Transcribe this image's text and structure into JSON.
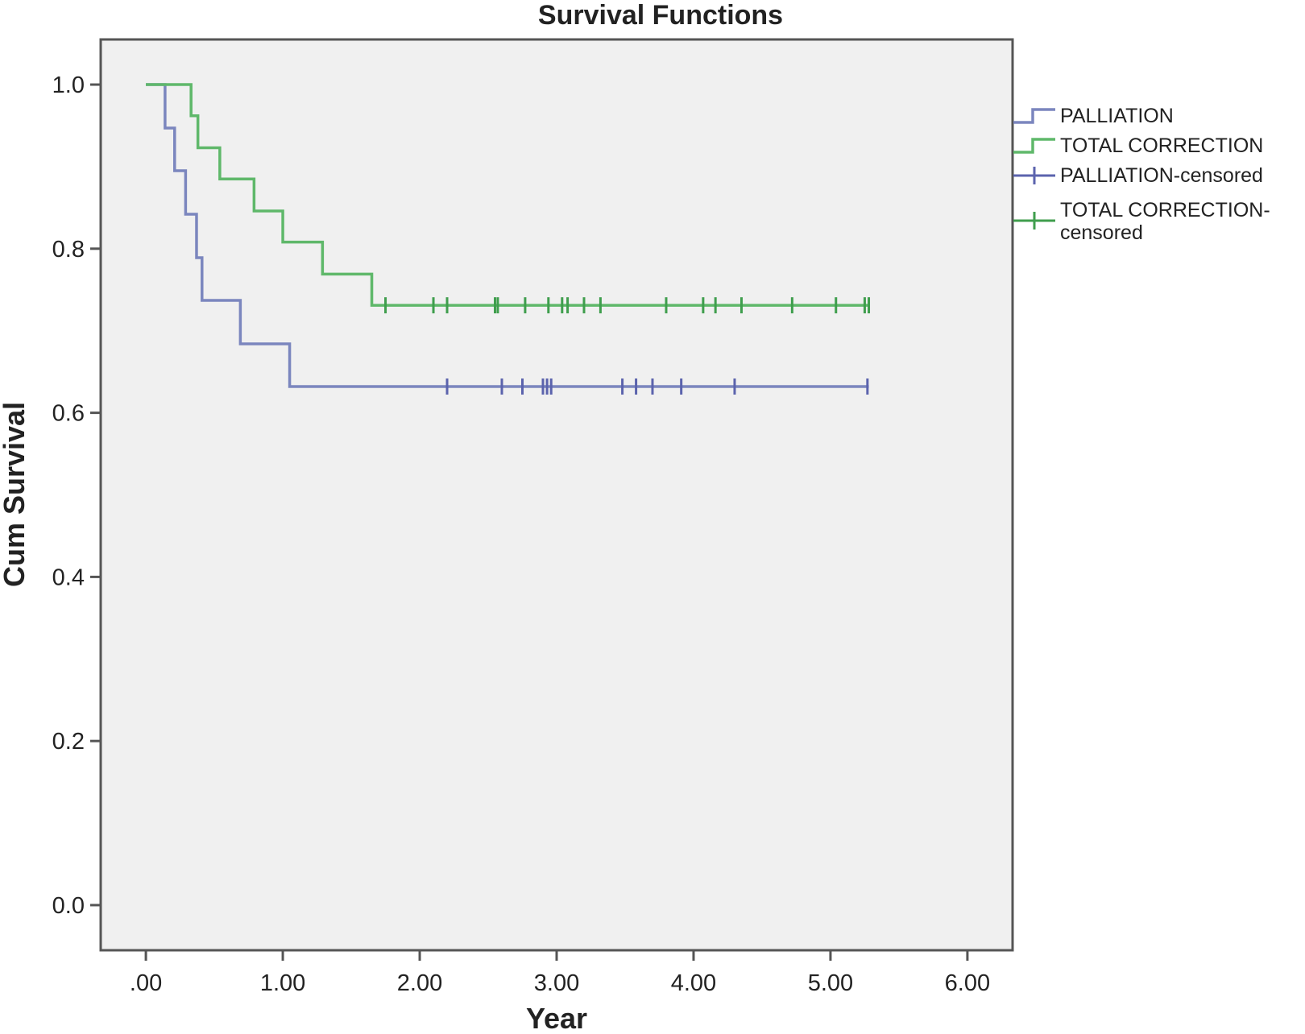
{
  "chart_data": {
    "type": "line",
    "subtype": "kaplan-meier-step",
    "title": "Survival Functions",
    "xlabel": "Year",
    "ylabel": "Cum Survival",
    "xlim": [
      -0.33,
      6.33
    ],
    "ylim": [
      -0.055,
      1.055
    ],
    "x_ticks": [
      0,
      1,
      2,
      3,
      4,
      5,
      6
    ],
    "x_tick_labels": [
      ".00",
      "1.00",
      "2.00",
      "3.00",
      "4.00",
      "5.00",
      "6.00"
    ],
    "y_ticks": [
      0,
      0.2,
      0.4,
      0.6,
      0.8,
      1.0
    ],
    "y_tick_labels": [
      "0.0",
      "0.2",
      "0.4",
      "0.6",
      "0.8",
      "1.0"
    ],
    "grid": false,
    "legend_position": "right",
    "plot_background": "#f0f0f0",
    "series": [
      {
        "name": "PALLIATION",
        "color": "#7b86be",
        "steps": [
          [
            0,
            1.0
          ],
          [
            0.14,
            0.947
          ],
          [
            0.21,
            0.895
          ],
          [
            0.29,
            0.842
          ],
          [
            0.37,
            0.789
          ],
          [
            0.41,
            0.737
          ],
          [
            0.69,
            0.684
          ],
          [
            1.05,
            0.632
          ]
        ],
        "end_x": 5.28,
        "censored_label": "PALLIATION-censored",
        "censored_color": "#5b63ad",
        "censored_x": [
          2.2,
          2.6,
          2.75,
          2.9,
          2.93,
          2.96,
          3.48,
          3.58,
          3.7,
          3.91,
          4.3,
          5.27
        ]
      },
      {
        "name": "TOTAL CORRECTION",
        "color": "#5fb86a",
        "steps": [
          [
            0,
            1.0
          ],
          [
            0.33,
            0.962
          ],
          [
            0.38,
            0.923
          ],
          [
            0.54,
            0.885
          ],
          [
            0.79,
            0.846
          ],
          [
            1.0,
            0.808
          ],
          [
            1.29,
            0.769
          ],
          [
            1.65,
            0.731
          ]
        ],
        "end_x": 5.28,
        "censored_label": "TOTAL CORRECTION-censored",
        "censored_color": "#3f9e4d",
        "censored_x": [
          1.75,
          2.1,
          2.2,
          2.55,
          2.57,
          2.77,
          2.94,
          3.04,
          3.08,
          3.2,
          3.32,
          3.8,
          4.07,
          4.16,
          4.35,
          4.72,
          5.04,
          5.25,
          5.28
        ]
      }
    ]
  }
}
